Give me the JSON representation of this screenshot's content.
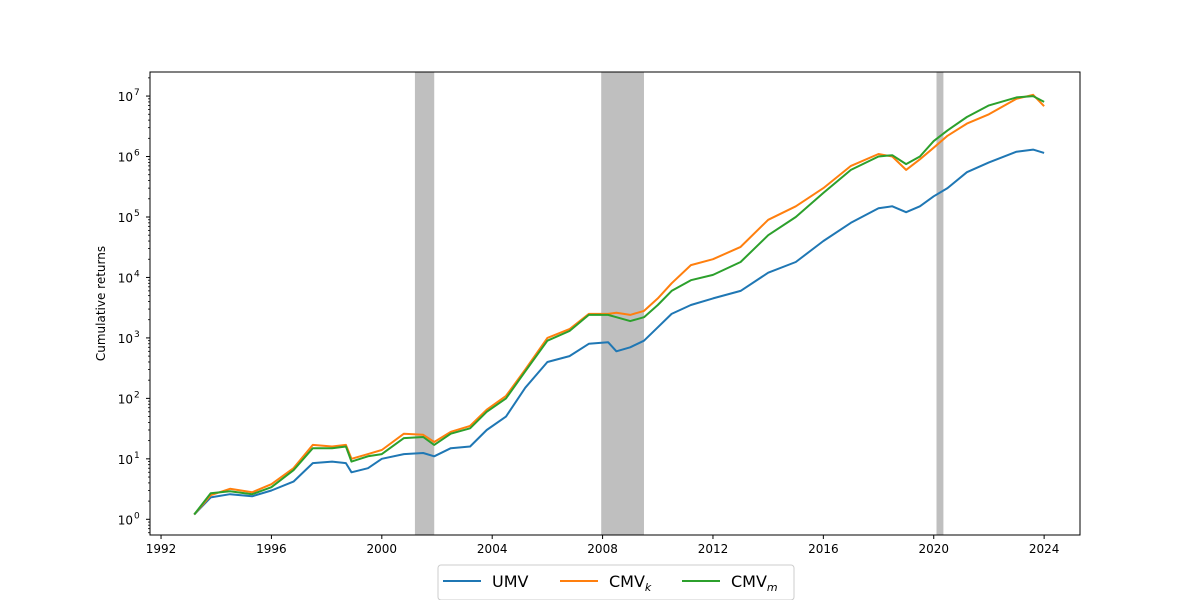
{
  "chart_data": {
    "type": "line",
    "title": "",
    "xlabel": "",
    "ylabel": "Cumulative returns",
    "y_scale": "log",
    "xlim": [
      1991.6,
      2025.3
    ],
    "ylim": [
      0.55,
      25000000
    ],
    "x_ticks": [
      "1992",
      "1996",
      "2000",
      "2004",
      "2008",
      "2012",
      "2016",
      "2020",
      "2024"
    ],
    "y_ticks": [
      {
        "base": "10",
        "exp": "0",
        "value": 1
      },
      {
        "base": "10",
        "exp": "1",
        "value": 10
      },
      {
        "base": "10",
        "exp": "2",
        "value": 100
      },
      {
        "base": "10",
        "exp": "3",
        "value": 1000
      },
      {
        "base": "10",
        "exp": "4",
        "value": 10000
      },
      {
        "base": "10",
        "exp": "5",
        "value": 100000
      },
      {
        "base": "10",
        "exp": "6",
        "value": 1000000
      },
      {
        "base": "10",
        "exp": "7",
        "value": 10000000
      }
    ],
    "shaded_periods": [
      [
        2001.2,
        2001.9
      ],
      [
        2007.95,
        2009.5
      ],
      [
        2020.1,
        2020.35
      ]
    ],
    "shade_color": "#bfbfbf",
    "legend_position": "bottom-center",
    "series": [
      {
        "name": "UMV",
        "name_sub": "",
        "color": "#1f77b4",
        "points": [
          [
            1993.2,
            1.2
          ],
          [
            1993.8,
            2.3
          ],
          [
            1994.5,
            2.6
          ],
          [
            1995.3,
            2.4
          ],
          [
            1996.0,
            3.0
          ],
          [
            1996.8,
            4.2
          ],
          [
            1997.5,
            8.5
          ],
          [
            1998.2,
            9.0
          ],
          [
            1998.7,
            8.5
          ],
          [
            1998.9,
            6.0
          ],
          [
            1999.5,
            7.0
          ],
          [
            2000.0,
            10.0
          ],
          [
            2000.8,
            12.0
          ],
          [
            2001.5,
            12.5
          ],
          [
            2001.9,
            11.0
          ],
          [
            2002.5,
            15.0
          ],
          [
            2003.2,
            16.0
          ],
          [
            2003.8,
            30.0
          ],
          [
            2004.5,
            50.0
          ],
          [
            2005.2,
            150.0
          ],
          [
            2006.0,
            400.0
          ],
          [
            2006.8,
            500.0
          ],
          [
            2007.5,
            800.0
          ],
          [
            2008.2,
            850.0
          ],
          [
            2008.5,
            600.0
          ],
          [
            2009.0,
            700.0
          ],
          [
            2009.5,
            900.0
          ],
          [
            2010.0,
            1500.0
          ],
          [
            2010.5,
            2500.0
          ],
          [
            2011.2,
            3500.0
          ],
          [
            2012.0,
            4500.0
          ],
          [
            2013.0,
            6000.0
          ],
          [
            2014.0,
            12000.0
          ],
          [
            2015.0,
            18000.0
          ],
          [
            2016.0,
            40000.0
          ],
          [
            2017.0,
            80000.0
          ],
          [
            2018.0,
            140000.0
          ],
          [
            2018.5,
            150000.0
          ],
          [
            2019.0,
            120000.0
          ],
          [
            2019.5,
            150000.0
          ],
          [
            2020.0,
            220000.0
          ],
          [
            2020.5,
            300000.0
          ],
          [
            2021.2,
            550000.0
          ],
          [
            2022.0,
            800000.0
          ],
          [
            2023.0,
            1200000.0
          ],
          [
            2023.6,
            1300000.0
          ],
          [
            2024.0,
            1150000.0
          ]
        ]
      },
      {
        "name": "CMV",
        "name_sub": "k",
        "color": "#ff7f0e",
        "points": [
          [
            1993.2,
            1.2
          ],
          [
            1993.8,
            2.5
          ],
          [
            1994.5,
            3.2
          ],
          [
            1995.3,
            2.8
          ],
          [
            1996.0,
            3.8
          ],
          [
            1996.8,
            7.0
          ],
          [
            1997.5,
            17.0
          ],
          [
            1998.2,
            16.0
          ],
          [
            1998.7,
            17.0
          ],
          [
            1998.9,
            10.0
          ],
          [
            1999.5,
            12.0
          ],
          [
            2000.0,
            14.0
          ],
          [
            2000.8,
            26.0
          ],
          [
            2001.5,
            25.0
          ],
          [
            2001.9,
            19.0
          ],
          [
            2002.5,
            28.0
          ],
          [
            2003.2,
            35.0
          ],
          [
            2003.8,
            65.0
          ],
          [
            2004.5,
            110.0
          ],
          [
            2005.2,
            300.0
          ],
          [
            2006.0,
            1000.0
          ],
          [
            2006.8,
            1400.0
          ],
          [
            2007.5,
            2500.0
          ],
          [
            2008.2,
            2500.0
          ],
          [
            2008.5,
            2600.0
          ],
          [
            2009.0,
            2400.0
          ],
          [
            2009.5,
            2800.0
          ],
          [
            2010.0,
            4500.0
          ],
          [
            2010.5,
            8000.0
          ],
          [
            2011.2,
            16000.0
          ],
          [
            2012.0,
            20000.0
          ],
          [
            2013.0,
            32000.0
          ],
          [
            2014.0,
            90000.0
          ],
          [
            2015.0,
            150000.0
          ],
          [
            2016.0,
            300000.0
          ],
          [
            2017.0,
            700000.0
          ],
          [
            2018.0,
            1100000.0
          ],
          [
            2018.5,
            1000000.0
          ],
          [
            2019.0,
            600000.0
          ],
          [
            2019.5,
            900000.0
          ],
          [
            2020.0,
            1400000.0
          ],
          [
            2020.5,
            2200000.0
          ],
          [
            2021.2,
            3500000.0
          ],
          [
            2022.0,
            5000000.0
          ],
          [
            2023.0,
            9000000.0
          ],
          [
            2023.6,
            10500000.0
          ],
          [
            2024.0,
            6800000.0
          ]
        ]
      },
      {
        "name": "CMV",
        "name_sub": "m",
        "color": "#2ca02c",
        "points": [
          [
            1993.2,
            1.2
          ],
          [
            1993.8,
            2.7
          ],
          [
            1994.5,
            2.9
          ],
          [
            1995.3,
            2.6
          ],
          [
            1996.0,
            3.4
          ],
          [
            1996.8,
            6.5
          ],
          [
            1997.5,
            15.0
          ],
          [
            1998.2,
            15.0
          ],
          [
            1998.7,
            16.0
          ],
          [
            1998.9,
            9.0
          ],
          [
            1999.5,
            11.0
          ],
          [
            2000.0,
            12.0
          ],
          [
            2000.8,
            22.0
          ],
          [
            2001.5,
            23.0
          ],
          [
            2001.9,
            17.0
          ],
          [
            2002.5,
            26.0
          ],
          [
            2003.2,
            32.0
          ],
          [
            2003.8,
            60.0
          ],
          [
            2004.5,
            100.0
          ],
          [
            2005.2,
            280.0
          ],
          [
            2006.0,
            900.0
          ],
          [
            2006.8,
            1300.0
          ],
          [
            2007.5,
            2400.0
          ],
          [
            2008.2,
            2400.0
          ],
          [
            2008.5,
            2200.0
          ],
          [
            2009.0,
            1900.0
          ],
          [
            2009.5,
            2200.0
          ],
          [
            2010.0,
            3500.0
          ],
          [
            2010.5,
            6000.0
          ],
          [
            2011.2,
            9000.0
          ],
          [
            2012.0,
            11000.0
          ],
          [
            2013.0,
            18000.0
          ],
          [
            2014.0,
            50000.0
          ],
          [
            2015.0,
            100000.0
          ],
          [
            2016.0,
            250000.0
          ],
          [
            2017.0,
            600000.0
          ],
          [
            2018.0,
            1000000.0
          ],
          [
            2018.5,
            1050000.0
          ],
          [
            2019.0,
            750000.0
          ],
          [
            2019.5,
            1000000.0
          ],
          [
            2020.0,
            1800000.0
          ],
          [
            2020.5,
            2700000.0
          ],
          [
            2021.2,
            4500000.0
          ],
          [
            2022.0,
            7000000.0
          ],
          [
            2023.0,
            9500000.0
          ],
          [
            2023.6,
            10000000.0
          ],
          [
            2024.0,
            8000000.0
          ]
        ]
      }
    ]
  }
}
